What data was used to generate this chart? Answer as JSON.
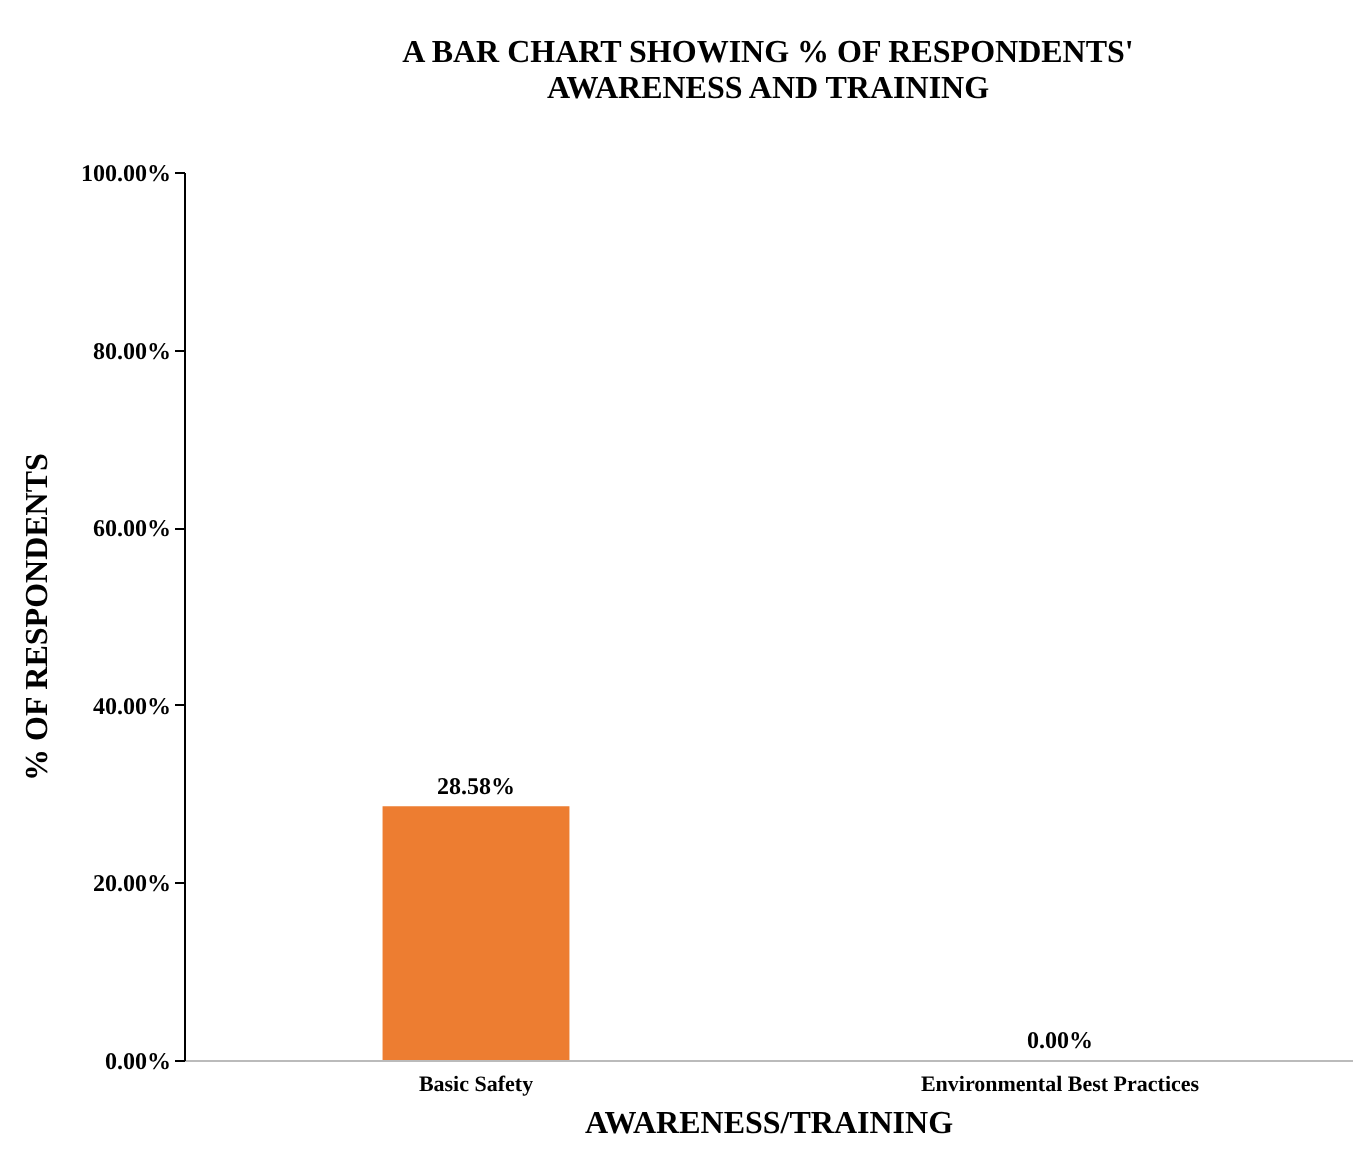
{
  "chart_data": {
    "type": "bar",
    "title": "A BAR CHART SHOWING % OF RESPONDENTS' AWARENESS AND TRAINING",
    "xlabel": "AWARENESS/TRAINING",
    "ylabel": "% OF RESPONDENTS",
    "categories": [
      "Basic Safety",
      "Environmental Best Practices"
    ],
    "values": [
      28.58,
      0
    ],
    "value_labels": [
      "28.58%",
      "0.00%"
    ],
    "color": "#ed7d31",
    "ylim": [
      0,
      100
    ],
    "yticks": [
      {
        "value": 0,
        "label": "0.00%"
      },
      {
        "value": 20,
        "label": "20.00%"
      },
      {
        "value": 40,
        "label": "40.00%"
      },
      {
        "value": 60,
        "label": "60.00%"
      },
      {
        "value": 80,
        "label": "80.00%"
      },
      {
        "value": 100,
        "label": "100.00%"
      }
    ],
    "grid": false
  }
}
